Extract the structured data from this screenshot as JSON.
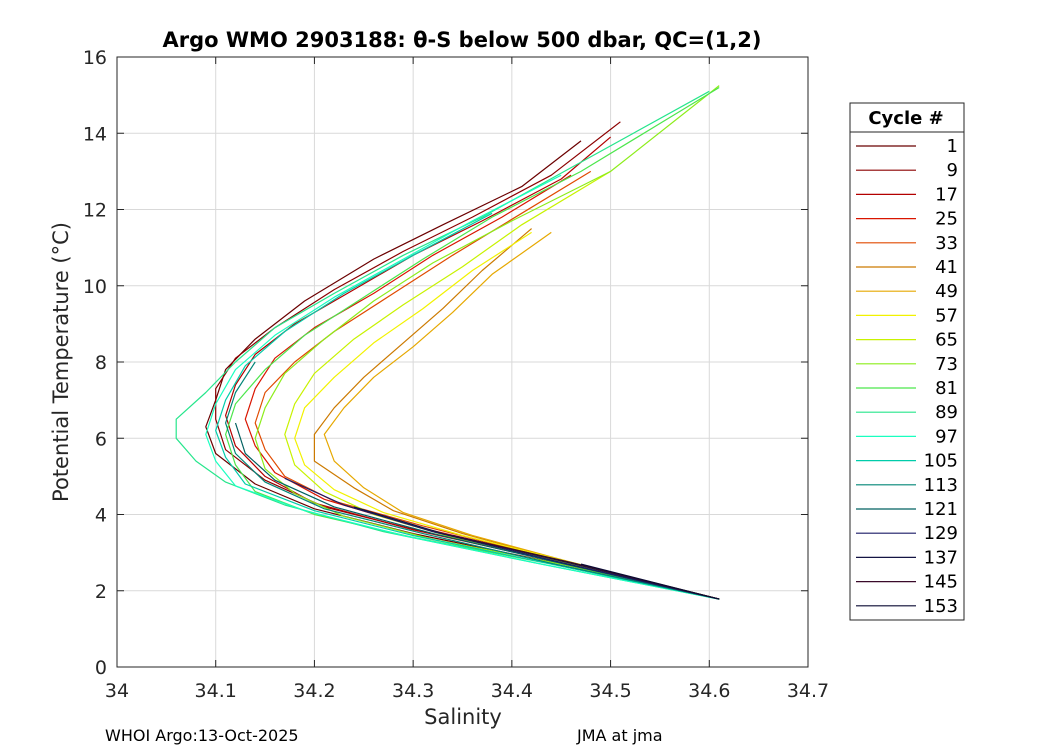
{
  "chart_data": {
    "type": "line",
    "title": "Argo WMO 2903188: θ-S below 500 dbar,  QC=(1,2)",
    "xlabel": "Salinity",
    "ylabel": "Potential Temperature (°C)",
    "xlim": [
      34.0,
      34.7
    ],
    "ylim": [
      0,
      16
    ],
    "x_ticks": [
      "34",
      "34.1",
      "34.2",
      "34.3",
      "34.4",
      "34.5",
      "34.6",
      "34.7"
    ],
    "y_ticks": [
      "0",
      "2",
      "4",
      "6",
      "8",
      "10",
      "12",
      "14",
      "16"
    ],
    "grid": true,
    "legend_title": "Cycle #",
    "legend_position": "right",
    "legend": [
      {
        "label": "1",
        "color": "#6b0000"
      },
      {
        "label": "9",
        "color": "#8c0000"
      },
      {
        "label": "17",
        "color": "#b30000"
      },
      {
        "label": "25",
        "color": "#d91500"
      },
      {
        "label": "33",
        "color": "#e04a00"
      },
      {
        "label": "41",
        "color": "#cc7a00"
      },
      {
        "label": "49",
        "color": "#e6a800"
      },
      {
        "label": "57",
        "color": "#f2f200"
      },
      {
        "label": "65",
        "color": "#c8f200"
      },
      {
        "label": "73",
        "color": "#8ced1a"
      },
      {
        "label": "81",
        "color": "#4ce64c"
      },
      {
        "label": "89",
        "color": "#26e68c"
      },
      {
        "label": "97",
        "color": "#1affc0"
      },
      {
        "label": "105",
        "color": "#00ccaa"
      },
      {
        "label": "113",
        "color": "#008577"
      },
      {
        "label": "121",
        "color": "#006060"
      },
      {
        "label": "129",
        "color": "#1a1a66"
      },
      {
        "label": "137",
        "color": "#141444"
      },
      {
        "label": "145",
        "color": "#3a0a2a"
      },
      {
        "label": "153",
        "color": "#0a0a33"
      }
    ],
    "series": [
      {
        "color": "#6b0000",
        "points": [
          [
            34.61,
            1.78
          ],
          [
            34.45,
            2.7
          ],
          [
            34.3,
            3.5
          ],
          [
            34.2,
            4.15
          ],
          [
            34.14,
            4.8
          ],
          [
            34.1,
            5.6
          ],
          [
            34.09,
            6.3
          ],
          [
            34.1,
            7.0
          ],
          [
            34.11,
            7.8
          ],
          [
            34.14,
            8.6
          ],
          [
            34.19,
            9.6
          ],
          [
            34.26,
            10.7
          ],
          [
            34.33,
            11.6
          ],
          [
            34.41,
            12.6
          ],
          [
            34.47,
            13.8
          ]
        ]
      },
      {
        "color": "#8c0000",
        "points": [
          [
            34.61,
            1.78
          ],
          [
            34.45,
            2.75
          ],
          [
            34.31,
            3.55
          ],
          [
            34.21,
            4.2
          ],
          [
            34.15,
            4.9
          ],
          [
            34.11,
            5.7
          ],
          [
            34.1,
            6.5
          ],
          [
            34.1,
            7.3
          ],
          [
            34.12,
            8.1
          ],
          [
            34.16,
            8.9
          ],
          [
            34.22,
            9.9
          ],
          [
            34.29,
            10.9
          ],
          [
            34.36,
            11.8
          ],
          [
            34.44,
            12.9
          ],
          [
            34.51,
            14.3
          ]
        ]
      },
      {
        "color": "#b30000",
        "points": [
          [
            34.61,
            1.78
          ],
          [
            34.44,
            2.8
          ],
          [
            34.3,
            3.6
          ],
          [
            34.2,
            4.3
          ],
          [
            34.15,
            5.0
          ],
          [
            34.12,
            5.8
          ],
          [
            34.11,
            6.6
          ],
          [
            34.12,
            7.4
          ],
          [
            34.14,
            8.2
          ],
          [
            34.18,
            9.0
          ],
          [
            34.24,
            9.9
          ],
          [
            34.3,
            10.8
          ],
          [
            34.37,
            11.7
          ],
          [
            34.45,
            12.8
          ],
          [
            34.5,
            13.9
          ]
        ]
      },
      {
        "color": "#d91500",
        "points": [
          [
            34.61,
            1.78
          ],
          [
            34.44,
            2.85
          ],
          [
            34.3,
            3.7
          ],
          [
            34.21,
            4.4
          ],
          [
            34.16,
            5.1
          ],
          [
            34.14,
            5.8
          ],
          [
            34.13,
            6.5
          ],
          [
            34.14,
            7.3
          ],
          [
            34.16,
            8.1
          ],
          [
            34.2,
            8.9
          ],
          [
            34.26,
            9.8
          ],
          [
            34.32,
            10.8
          ],
          [
            34.39,
            11.8
          ],
          [
            34.46,
            12.9
          ]
        ]
      },
      {
        "color": "#e04a00",
        "points": [
          [
            34.61,
            1.78
          ],
          [
            34.44,
            2.85
          ],
          [
            34.31,
            3.7
          ],
          [
            34.22,
            4.35
          ],
          [
            34.17,
            5.0
          ],
          [
            34.15,
            5.7
          ],
          [
            34.14,
            6.4
          ],
          [
            34.15,
            7.2
          ],
          [
            34.18,
            8.0
          ],
          [
            34.22,
            8.8
          ],
          [
            34.28,
            9.8
          ],
          [
            34.34,
            10.8
          ],
          [
            34.41,
            11.9
          ],
          [
            34.48,
            13.0
          ]
        ]
      },
      {
        "color": "#cc7a00",
        "points": [
          [
            34.61,
            1.78
          ],
          [
            34.45,
            2.8
          ],
          [
            34.35,
            3.5
          ],
          [
            34.28,
            4.1
          ],
          [
            34.24,
            4.7
          ],
          [
            34.2,
            5.4
          ],
          [
            34.2,
            6.1
          ],
          [
            34.22,
            6.8
          ],
          [
            34.25,
            7.6
          ],
          [
            34.29,
            8.5
          ],
          [
            34.33,
            9.4
          ],
          [
            34.37,
            10.4
          ],
          [
            34.42,
            11.5
          ]
        ]
      },
      {
        "color": "#e6a800",
        "points": [
          [
            34.61,
            1.78
          ],
          [
            34.46,
            2.75
          ],
          [
            34.36,
            3.45
          ],
          [
            34.29,
            4.05
          ],
          [
            34.25,
            4.7
          ],
          [
            34.22,
            5.4
          ],
          [
            34.21,
            6.1
          ],
          [
            34.23,
            6.8
          ],
          [
            34.26,
            7.6
          ],
          [
            34.3,
            8.4
          ],
          [
            34.34,
            9.3
          ],
          [
            34.38,
            10.3
          ],
          [
            34.44,
            11.4
          ]
        ]
      },
      {
        "color": "#f2f200",
        "points": [
          [
            34.61,
            1.78
          ],
          [
            34.46,
            2.75
          ],
          [
            34.35,
            3.45
          ],
          [
            34.27,
            4.05
          ],
          [
            34.22,
            4.65
          ],
          [
            34.19,
            5.3
          ],
          [
            34.18,
            6.0
          ],
          [
            34.19,
            6.8
          ],
          [
            34.22,
            7.6
          ],
          [
            34.26,
            8.5
          ],
          [
            34.31,
            9.4
          ],
          [
            34.36,
            10.4
          ],
          [
            34.42,
            11.4
          ]
        ]
      },
      {
        "color": "#c8f200",
        "points": [
          [
            34.61,
            1.78
          ],
          [
            34.46,
            2.7
          ],
          [
            34.34,
            3.4
          ],
          [
            34.26,
            4.0
          ],
          [
            34.21,
            4.6
          ],
          [
            34.18,
            5.3
          ],
          [
            34.17,
            6.1
          ],
          [
            34.18,
            6.9
          ],
          [
            34.2,
            7.7
          ],
          [
            34.24,
            8.6
          ],
          [
            34.29,
            9.5
          ],
          [
            34.35,
            10.5
          ],
          [
            34.41,
            11.6
          ],
          [
            34.5,
            13.0
          ]
        ]
      },
      {
        "color": "#8ced1a",
        "points": [
          [
            34.61,
            1.78
          ],
          [
            34.45,
            2.7
          ],
          [
            34.32,
            3.35
          ],
          [
            34.23,
            3.95
          ],
          [
            34.18,
            4.55
          ],
          [
            34.15,
            5.2
          ],
          [
            34.14,
            6.0
          ],
          [
            34.15,
            6.8
          ],
          [
            34.17,
            7.7
          ],
          [
            34.21,
            8.6
          ],
          [
            34.26,
            9.6
          ],
          [
            34.32,
            10.6
          ],
          [
            34.4,
            11.7
          ],
          [
            34.5,
            13.0
          ],
          [
            34.61,
            15.25
          ]
        ]
      },
      {
        "color": "#4ce64c",
        "points": [
          [
            34.61,
            1.78
          ],
          [
            34.44,
            2.7
          ],
          [
            34.3,
            3.4
          ],
          [
            34.2,
            4.0
          ],
          [
            34.14,
            4.6
          ],
          [
            34.12,
            5.3
          ],
          [
            34.11,
            6.1
          ],
          [
            34.12,
            6.9
          ],
          [
            34.15,
            7.8
          ],
          [
            34.19,
            8.7
          ],
          [
            34.25,
            9.7
          ],
          [
            34.31,
            10.7
          ],
          [
            34.38,
            11.8
          ],
          [
            34.47,
            13.0
          ],
          [
            34.61,
            15.2
          ]
        ]
      },
      {
        "color": "#26e68c",
        "points": [
          [
            34.61,
            1.78
          ],
          [
            34.42,
            2.75
          ],
          [
            34.27,
            3.55
          ],
          [
            34.17,
            4.25
          ],
          [
            34.11,
            4.85
          ],
          [
            34.08,
            5.4
          ],
          [
            34.06,
            6.0
          ],
          [
            34.06,
            6.5
          ],
          [
            34.09,
            7.2
          ],
          [
            34.12,
            8.0
          ],
          [
            34.16,
            8.9
          ],
          [
            34.22,
            9.8
          ],
          [
            34.29,
            10.8
          ],
          [
            34.37,
            11.8
          ],
          [
            34.46,
            13.1
          ],
          [
            34.6,
            15.1
          ]
        ]
      },
      {
        "color": "#1affc0",
        "points": [
          [
            34.61,
            1.78
          ],
          [
            34.43,
            2.7
          ],
          [
            34.29,
            3.45
          ],
          [
            34.19,
            4.1
          ],
          [
            34.12,
            4.75
          ],
          [
            34.1,
            5.4
          ],
          [
            34.09,
            6.1
          ],
          [
            34.1,
            6.9
          ],
          [
            34.12,
            7.8
          ],
          [
            34.16,
            8.7
          ],
          [
            34.22,
            9.7
          ],
          [
            34.29,
            10.7
          ],
          [
            34.36,
            11.7
          ],
          [
            34.45,
            12.9
          ]
        ]
      },
      {
        "color": "#00ccaa",
        "points": [
          [
            34.61,
            1.78
          ],
          [
            34.44,
            2.7
          ],
          [
            34.3,
            3.45
          ],
          [
            34.2,
            4.1
          ],
          [
            34.13,
            4.8
          ],
          [
            34.11,
            5.5
          ],
          [
            34.1,
            6.2
          ],
          [
            34.11,
            7.0
          ],
          [
            34.13,
            7.9
          ],
          [
            34.17,
            8.8
          ],
          [
            34.23,
            9.8
          ],
          [
            34.3,
            10.8
          ],
          [
            34.38,
            11.9
          ]
        ]
      },
      {
        "color": "#008577",
        "points": [
          [
            34.61,
            1.78
          ],
          [
            34.44,
            2.72
          ],
          [
            34.31,
            3.5
          ],
          [
            34.21,
            4.15
          ],
          [
            34.15,
            4.85
          ],
          [
            34.12,
            5.6
          ],
          [
            34.11,
            6.4
          ],
          [
            34.12,
            7.2
          ],
          [
            34.14,
            8.0
          ]
        ]
      },
      {
        "color": "#006060",
        "points": [
          [
            34.61,
            1.78
          ],
          [
            34.45,
            2.72
          ],
          [
            34.32,
            3.5
          ],
          [
            34.22,
            4.2
          ],
          [
            34.16,
            4.9
          ],
          [
            34.13,
            5.6
          ],
          [
            34.12,
            6.4
          ]
        ]
      },
      {
        "color": "#1a1a66",
        "points": [
          [
            34.61,
            1.78
          ],
          [
            34.45,
            2.74
          ],
          [
            34.32,
            3.55
          ],
          [
            34.23,
            4.25
          ],
          [
            34.17,
            4.95
          ]
        ]
      },
      {
        "color": "#141444",
        "points": [
          [
            34.61,
            1.78
          ],
          [
            34.46,
            2.72
          ],
          [
            34.33,
            3.5
          ],
          [
            34.24,
            4.2
          ]
        ]
      },
      {
        "color": "#3a0a2a",
        "points": [
          [
            34.61,
            1.78
          ],
          [
            34.46,
            2.74
          ],
          [
            34.34,
            3.45
          ]
        ]
      },
      {
        "color": "#0a0a33",
        "points": [
          [
            34.61,
            1.78
          ],
          [
            34.47,
            2.7
          ]
        ]
      }
    ]
  },
  "footer": {
    "left": "WHOI Argo:13-Oct-2025",
    "right": "JMA at jma"
  }
}
